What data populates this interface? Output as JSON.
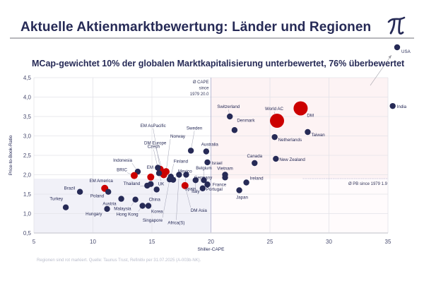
{
  "header": {
    "title": "Aktuelle Aktienmarktbewertung: Länder und Regionen",
    "logo_icon": "pi-logo-icon"
  },
  "footer": "Regionen sind rot markiert. Quelle: Taunus Trust, Refinitiv per 31.07.2025 (A-003b-NK).",
  "colors": {
    "country": "#262a56",
    "region": "#cc0000",
    "overvalued_zone": "#fdf3f4",
    "undervalued_zone": "#f1f1f8",
    "grid": "#e3e3e8"
  },
  "chart_data": {
    "type": "scatter",
    "title": "MCap-gewichtet 10% der globalen Marktkapitalisierung unterbewertet, 76% überbewertet",
    "xlabel": "Shiller-CAPE",
    "ylabel": "Price-to-Book-Ratio",
    "xlim": [
      5,
      35
    ],
    "ylim": [
      0.5,
      4.5
    ],
    "xticks": [
      "5",
      "10",
      "15",
      "20",
      "25",
      "30",
      "35"
    ],
    "yticks": [
      "0,5",
      "1,0",
      "1,5",
      "2,0",
      "2,5",
      "3,0",
      "3,5",
      "4,0",
      "4,5"
    ],
    "xtick_values": [
      5,
      10,
      15,
      20,
      25,
      30,
      35
    ],
    "ytick_values": [
      0.5,
      1.0,
      1.5,
      2.0,
      2.5,
      3.0,
      3.5,
      4.0,
      4.5
    ],
    "grid": true,
    "reference_lines": {
      "cape_mean": {
        "value": 20.0,
        "label": [
          "Ø CAPE",
          "since",
          "1979 20.0"
        ]
      },
      "pb_mean": {
        "value": 1.9,
        "label": "Ø PB since 1979 1.9"
      }
    },
    "points": [
      {
        "name": "USA",
        "x": 35.8,
        "y": 5.28,
        "region": false,
        "offscale": true
      },
      {
        "name": "India",
        "x": 35.4,
        "y": 3.77,
        "region": false
      },
      {
        "name": "DM",
        "x": 27.6,
        "y": 3.71,
        "region": true,
        "size": "large"
      },
      {
        "name": "World AC",
        "x": 25.6,
        "y": 3.39,
        "region": true,
        "size": "large"
      },
      {
        "name": "Taiwan",
        "x": 28.2,
        "y": 3.1,
        "region": false
      },
      {
        "name": "Netherlands",
        "x": 25.4,
        "y": 2.97,
        "region": false
      },
      {
        "name": "New Zealand",
        "x": 25.5,
        "y": 2.41,
        "region": false
      },
      {
        "name": "Switzerland",
        "x": 21.6,
        "y": 3.5,
        "region": false
      },
      {
        "name": "Denmark",
        "x": 22.0,
        "y": 3.15,
        "region": false
      },
      {
        "name": "Sweden",
        "x": 18.3,
        "y": 2.62,
        "region": false
      },
      {
        "name": "Australia",
        "x": 19.6,
        "y": 2.6,
        "region": false
      },
      {
        "name": "Israel",
        "x": 19.7,
        "y": 2.32,
        "region": false
      },
      {
        "name": "Canada",
        "x": 23.7,
        "y": 2.3,
        "region": false
      },
      {
        "name": "Vietnam",
        "x": 21.2,
        "y": 2.0,
        "region": false
      },
      {
        "name": "France",
        "x": 21.2,
        "y": 1.93,
        "region": false
      },
      {
        "name": "Ireland",
        "x": 23.0,
        "y": 1.8,
        "region": false
      },
      {
        "name": "Japan",
        "x": 22.4,
        "y": 1.6,
        "region": false
      },
      {
        "name": "Belgium",
        "x": 19.4,
        "y": 1.86,
        "region": false
      },
      {
        "name": "Germany",
        "x": 19.7,
        "y": 1.75,
        "region": false
      },
      {
        "name": "Portugal",
        "x": 19.3,
        "y": 1.65,
        "region": false
      },
      {
        "name": "Italy",
        "x": 18.7,
        "y": 1.86,
        "region": false
      },
      {
        "name": "Spain",
        "x": 17.9,
        "y": 2.0,
        "region": false
      },
      {
        "name": "DM Asia",
        "x": 17.8,
        "y": 1.72,
        "region": true
      },
      {
        "name": "Africa(S)",
        "x": 17.3,
        "y": 2.0,
        "region": false
      },
      {
        "name": "Mexico",
        "x": 16.8,
        "y": 1.87,
        "region": false
      },
      {
        "name": "Finland",
        "x": 16.6,
        "y": 1.95,
        "region": false
      },
      {
        "name": "Singapore",
        "x": 16.5,
        "y": 1.88,
        "region": false
      },
      {
        "name": "Norway",
        "x": 16.2,
        "y": 2.08,
        "region": true
      },
      {
        "name": "EM AsPacific",
        "x": 15.7,
        "y": 2.14,
        "region": true
      },
      {
        "name": "DM Europe",
        "x": 16.0,
        "y": 2.0,
        "region": true
      },
      {
        "name": "Czech",
        "x": 15.5,
        "y": 2.18,
        "region": false
      },
      {
        "name": "UK",
        "x": 15.6,
        "y": 2.04,
        "region": false
      },
      {
        "name": "EM",
        "x": 14.9,
        "y": 1.94,
        "region": true
      },
      {
        "name": "Indonesia",
        "x": 13.8,
        "y": 2.08,
        "region": false
      },
      {
        "name": "BRIC",
        "x": 13.5,
        "y": 1.98,
        "region": true
      },
      {
        "name": "Thailand",
        "x": 14.6,
        "y": 1.72,
        "region": false
      },
      {
        "name": "Thailand-2",
        "x": 14.9,
        "y": 1.76,
        "region": false,
        "unlabeled": true
      },
      {
        "name": "China",
        "x": 15.4,
        "y": 1.62,
        "region": false
      },
      {
        "name": "Korea",
        "x": 14.7,
        "y": 1.2,
        "region": false
      },
      {
        "name": "Hong Kong",
        "x": 14.2,
        "y": 1.2,
        "region": false
      },
      {
        "name": "Malaysia",
        "x": 13.6,
        "y": 1.36,
        "region": false
      },
      {
        "name": "Austria",
        "x": 12.4,
        "y": 1.38,
        "region": false
      },
      {
        "name": "EM America",
        "x": 11.0,
        "y": 1.65,
        "region": true
      },
      {
        "name": "Poland",
        "x": 11.3,
        "y": 1.56,
        "region": false
      },
      {
        "name": "Hungary",
        "x": 11.2,
        "y": 1.12,
        "region": false
      },
      {
        "name": "Brazil",
        "x": 8.9,
        "y": 1.56,
        "region": false
      },
      {
        "name": "Turkey",
        "x": 7.7,
        "y": 1.16,
        "region": false
      }
    ]
  }
}
